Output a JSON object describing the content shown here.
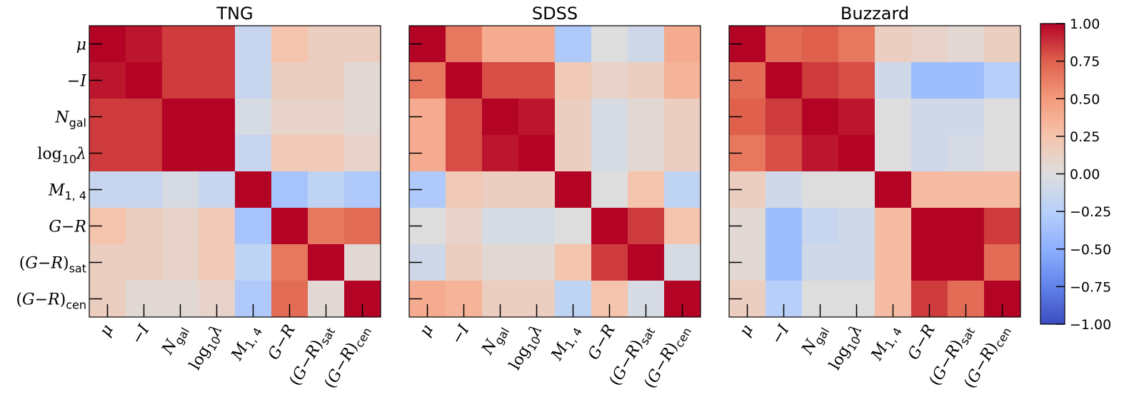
{
  "chart_data": [
    {
      "type": "heatmap",
      "title": "TNG",
      "labels": [
        "μ",
        "−I",
        "Ngal",
        "log10λ",
        "M1,4",
        "G−R",
        "(G−R)sat",
        "(G−R)cen"
      ],
      "values": [
        [
          1.0,
          0.95,
          0.85,
          0.85,
          -0.15,
          0.25,
          0.15,
          0.15
        ],
        [
          0.95,
          1.0,
          0.85,
          0.85,
          -0.15,
          0.15,
          0.15,
          0.05
        ],
        [
          0.85,
          0.85,
          1.0,
          1.0,
          -0.05,
          0.1,
          0.1,
          0.05
        ],
        [
          0.85,
          0.85,
          1.0,
          1.0,
          -0.15,
          0.2,
          0.2,
          0.1
        ],
        [
          -0.15,
          -0.15,
          -0.05,
          -0.15,
          1.0,
          -0.35,
          -0.2,
          -0.3
        ],
        [
          0.25,
          0.15,
          0.1,
          0.2,
          -0.35,
          1.0,
          0.65,
          0.7
        ],
        [
          0.15,
          0.15,
          0.1,
          0.2,
          -0.2,
          0.65,
          1.0,
          0.05
        ],
        [
          0.15,
          0.05,
          0.05,
          0.1,
          -0.3,
          0.7,
          0.05,
          1.0
        ]
      ]
    },
    {
      "type": "heatmap",
      "title": "SDSS",
      "labels": [
        "μ",
        "−I",
        "Ngal",
        "log10λ",
        "M1,4",
        "G−R",
        "(G−R)sat",
        "(G−R)cen"
      ],
      "values": [
        [
          1.0,
          0.65,
          0.4,
          0.4,
          -0.3,
          0.0,
          -0.1,
          0.4
        ],
        [
          0.65,
          1.0,
          0.8,
          0.8,
          0.2,
          0.1,
          0.15,
          0.35
        ],
        [
          0.4,
          0.8,
          1.0,
          0.95,
          0.15,
          -0.05,
          0.05,
          0.15
        ],
        [
          0.4,
          0.8,
          0.95,
          1.0,
          0.15,
          -0.05,
          0.05,
          0.15
        ],
        [
          -0.3,
          0.2,
          0.15,
          0.15,
          1.0,
          0.0,
          0.25,
          -0.2
        ],
        [
          0.0,
          0.1,
          -0.05,
          -0.05,
          0.0,
          1.0,
          0.85,
          0.25
        ],
        [
          -0.1,
          0.15,
          0.05,
          0.05,
          0.25,
          0.85,
          1.0,
          -0.05
        ],
        [
          0.4,
          0.35,
          0.15,
          0.15,
          -0.2,
          0.25,
          -0.05,
          1.0
        ]
      ]
    },
    {
      "type": "heatmap",
      "title": "Buzzard",
      "labels": [
        "μ",
        "−I",
        "Ngal",
        "log10λ",
        "M1,4",
        "G−R",
        "(G−R)sat",
        "(G−R)cen"
      ],
      "values": [
        [
          1.0,
          0.7,
          0.75,
          0.65,
          0.15,
          0.1,
          0.05,
          0.15
        ],
        [
          0.7,
          1.0,
          0.85,
          0.8,
          -0.1,
          -0.4,
          -0.4,
          -0.25
        ],
        [
          0.75,
          0.85,
          1.0,
          0.95,
          0.0,
          -0.1,
          -0.1,
          0.0
        ],
        [
          0.65,
          0.8,
          0.95,
          1.0,
          0.0,
          -0.1,
          -0.05,
          0.0
        ],
        [
          0.15,
          -0.1,
          0.0,
          0.0,
          1.0,
          0.3,
          0.3,
          0.3
        ],
        [
          0.05,
          -0.4,
          -0.15,
          -0.1,
          0.3,
          1.0,
          1.0,
          0.85
        ],
        [
          0.05,
          -0.4,
          -0.1,
          -0.1,
          0.3,
          1.0,
          1.0,
          0.7
        ],
        [
          0.15,
          -0.25,
          0.0,
          0.0,
          0.3,
          0.85,
          0.7,
          1.0
        ]
      ]
    }
  ],
  "colorbar": {
    "colormap": "coolwarm",
    "range": [
      -1.0,
      1.0
    ],
    "tick_labels": [
      "1.00",
      "0.75",
      "0.50",
      "0.25",
      "0.00",
      "−0.25",
      "−0.50",
      "−0.75",
      "−1.00"
    ]
  }
}
